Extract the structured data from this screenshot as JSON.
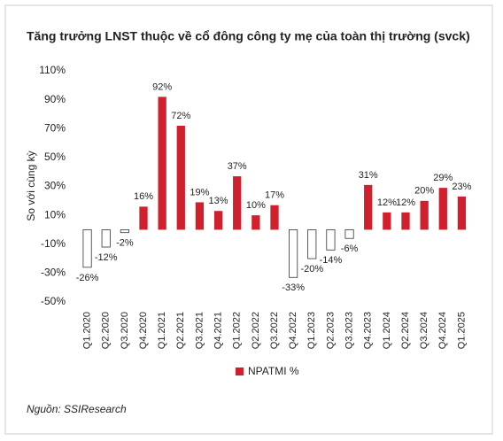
{
  "chart_data": {
    "type": "bar",
    "title": "Tăng trưởng LNST thuộc về cổ đông công ty mẹ của toàn thị trường (svck)",
    "y_label": "So với cùng kỳ",
    "categories": [
      "Q1.2020",
      "Q2.2020",
      "Q3.2020",
      "Q4.2020",
      "Q1.2021",
      "Q2.2021",
      "Q3.2021",
      "Q4.2021",
      "Q1.2022",
      "Q2.2022",
      "Q3.2022",
      "Q4.2022",
      "Q1.2023",
      "Q2.2023",
      "Q3.2023",
      "Q4.2023",
      "Q1.2024",
      "Q2.2024",
      "Q3.2024",
      "Q4.2024",
      "Q1.2025"
    ],
    "series": [
      {
        "name": "NPATMI %",
        "color": "#d0202e",
        "negative_color": "#ffffff",
        "values": [
          -26,
          -12,
          -2,
          16,
          92,
          72,
          19,
          13,
          37,
          10,
          17,
          -33,
          -20,
          -14,
          -6,
          31,
          12,
          12,
          20,
          29,
          23
        ],
        "value_labels": [
          "-26%",
          "-12%",
          "-2%",
          "16%",
          "92%",
          "72%",
          "19%",
          "13%",
          "37%",
          "10%",
          "17%",
          "-33%",
          "-20%",
          "-14%",
          "-6%",
          "31%",
          "12%",
          "12%",
          "20%",
          "29%",
          "23%"
        ]
      }
    ],
    "ylim": [
      -50,
      110
    ],
    "yticks": [
      {
        "value": -50,
        "label": "-50%"
      },
      {
        "value": -30,
        "label": "-30%"
      },
      {
        "value": -10,
        "label": "-10%"
      },
      {
        "value": 10,
        "label": "10%"
      },
      {
        "value": 30,
        "label": "30%"
      },
      {
        "value": 50,
        "label": "50%"
      },
      {
        "value": 70,
        "label": "70%"
      },
      {
        "value": 90,
        "label": "90%"
      },
      {
        "value": 110,
        "label": "110%"
      }
    ],
    "grid": false,
    "source": "Nguồn: SSIResearch"
  }
}
